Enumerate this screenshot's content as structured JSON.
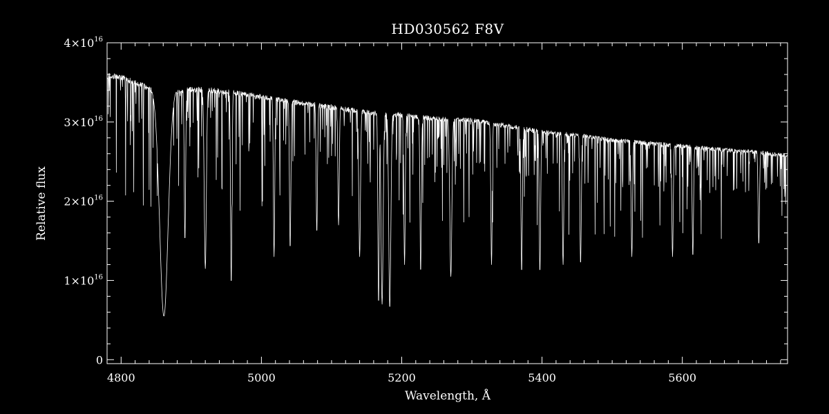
{
  "chart_data": {
    "type": "line",
    "title": "HD030562  F8V",
    "xlabel": "Wavelength, Å",
    "ylabel": "Relative flux",
    "xlim": [
      4780,
      5750
    ],
    "ylim": [
      -500000000000000.0,
      4e+16
    ],
    "grid": false,
    "colors": {
      "background": "#000000",
      "foreground": "#ffffff"
    },
    "x_ticks": [
      {
        "value": 4800,
        "label": "4800"
      },
      {
        "value": 5000,
        "label": "5000"
      },
      {
        "value": 5200,
        "label": "5200"
      },
      {
        "value": 5400,
        "label": "5400"
      },
      {
        "value": 5600,
        "label": "5600"
      }
    ],
    "x_minor_step": 20,
    "y_ticks": [
      {
        "value": 0,
        "mantissa": "0",
        "exponent": ""
      },
      {
        "value": 1e+16,
        "mantissa": "1×10",
        "exponent": "16"
      },
      {
        "value": 2e+16,
        "mantissa": "2×10",
        "exponent": "16"
      },
      {
        "value": 3e+16,
        "mantissa": "3×10",
        "exponent": "16"
      },
      {
        "value": 4e+16,
        "mantissa": "4×10",
        "exponent": "16"
      }
    ],
    "y_minor_step": 2000000000000000.0,
    "series": [
      {
        "continuum": [
          [
            4780,
            3.62e+16
          ],
          [
            4800,
            3.6e+16
          ],
          [
            4830,
            3.5e+16
          ],
          [
            4850,
            3.4e+16
          ],
          [
            4880,
            3.42e+16
          ],
          [
            4900,
            3.45e+16
          ],
          [
            4950,
            3.42e+16
          ],
          [
            5000,
            3.35e+16
          ],
          [
            5050,
            3.28e+16
          ],
          [
            5100,
            3.22e+16
          ],
          [
            5150,
            3.15e+16
          ],
          [
            5200,
            3.12e+16
          ],
          [
            5250,
            3.07e+16
          ],
          [
            5300,
            3.05e+16
          ],
          [
            5350,
            2.98e+16
          ],
          [
            5400,
            2.9e+16
          ],
          [
            5450,
            2.86e+16
          ],
          [
            5500,
            2.8e+16
          ],
          [
            5550,
            2.76e+16
          ],
          [
            5600,
            2.72e+16
          ],
          [
            5650,
            2.68e+16
          ],
          [
            5700,
            2.65e+16
          ],
          [
            5750,
            2.6e+16
          ]
        ],
        "absorption_lines": [
          [
            4861,
            5500000000000000.0,
            6
          ],
          [
            4891,
            1.5e+16,
            1
          ],
          [
            4920,
            1.15e+16,
            1.5
          ],
          [
            4957,
            9500000000000000.0,
            1
          ],
          [
            5018,
            1.3e+16,
            1
          ],
          [
            5041,
            1.4e+16,
            1
          ],
          [
            5079,
            1.6e+16,
            1
          ],
          [
            5110,
            1.7e+16,
            1
          ],
          [
            5140,
            1.3e+16,
            1.2
          ],
          [
            5167,
            7000000000000000.0,
            1
          ],
          [
            5172,
            7000000000000000.0,
            1.5
          ],
          [
            5183,
            6500000000000000.0,
            1.5
          ],
          [
            5204,
            1.2e+16,
            1
          ],
          [
            5227,
            1.1e+16,
            1
          ],
          [
            5270,
            1.05e+16,
            1.5
          ],
          [
            5328,
            1.2e+16,
            1
          ],
          [
            5371,
            1.1e+16,
            1
          ],
          [
            5397,
            1.1e+16,
            1
          ],
          [
            5430,
            1.2e+16,
            1
          ],
          [
            5455,
            1.2e+16,
            1
          ],
          [
            5528,
            1.3e+16,
            1
          ],
          [
            5586,
            1.3e+16,
            1
          ],
          [
            5615,
            1.3e+16,
            1
          ],
          [
            5709,
            1.45e+16,
            1
          ]
        ]
      }
    ]
  }
}
